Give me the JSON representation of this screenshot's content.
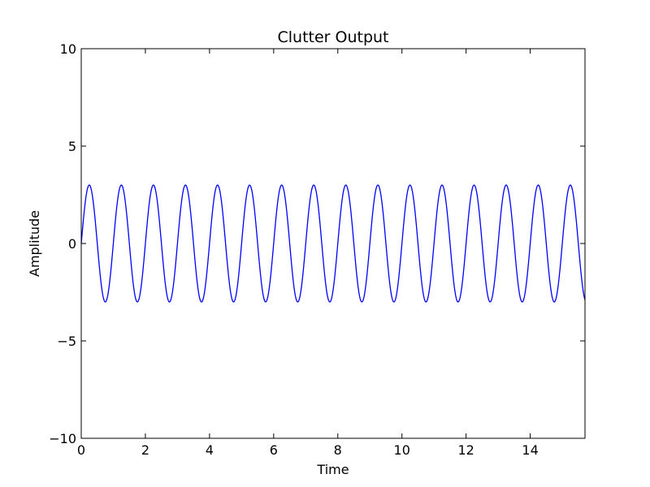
{
  "chart_data": {
    "type": "line",
    "title": "Clutter Output",
    "xlabel": "Time",
    "ylabel": "Amplitude",
    "xlim": [
      0,
      15.708
    ],
    "ylim": [
      -10,
      10
    ],
    "x_ticks": [
      0,
      2,
      4,
      6,
      8,
      10,
      12,
      14
    ],
    "x_tick_labels": [
      "0",
      "2",
      "4",
      "6",
      "8",
      "10",
      "12",
      "14"
    ],
    "y_ticks": [
      10,
      5,
      0,
      -5,
      -10
    ],
    "y_tick_labels": [
      "10",
      "5",
      "0",
      "−5",
      "−10"
    ],
    "grid": false,
    "legend": "none",
    "series": [
      {
        "color": "#0000ff",
        "function": "sine",
        "amplitude": 3,
        "frequency_hz": 1,
        "phase": 0,
        "x_start": 0,
        "x_end": 15.708
      }
    ]
  }
}
